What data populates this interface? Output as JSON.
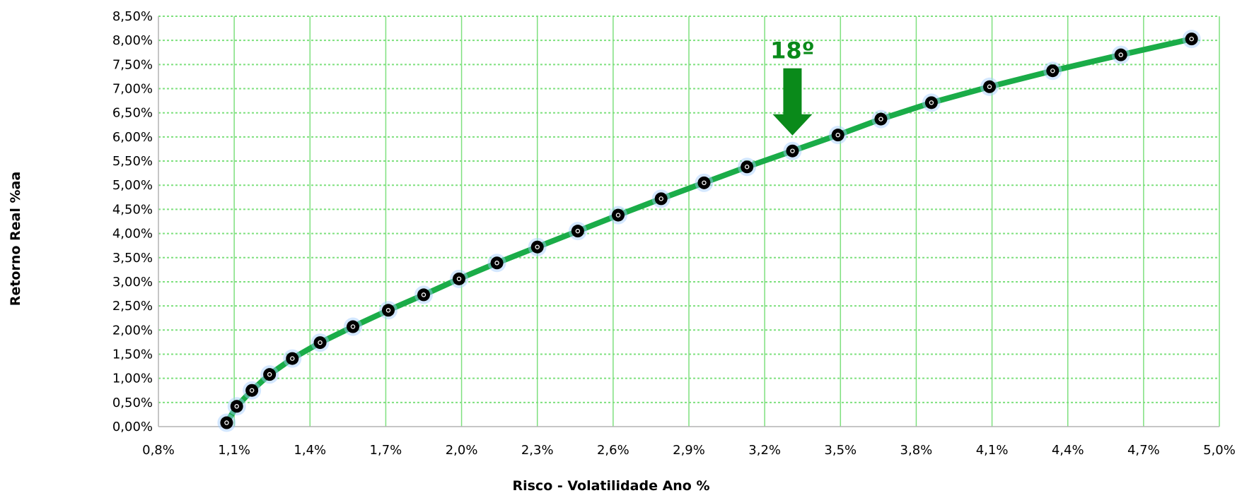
{
  "chart_data": {
    "type": "line",
    "xlabel": "Risco - Volatilidade Ano %",
    "ylabel": "Retorno Real %aa",
    "xlim": [
      0.8,
      5.0
    ],
    "ylim": [
      0,
      8.5
    ],
    "x_ticks": [
      "0,8%",
      "1,1%",
      "1,4%",
      "1,7%",
      "2,0%",
      "2,3%",
      "2,6%",
      "2,9%",
      "3,2%",
      "3,5%",
      "3,8%",
      "4,1%",
      "4,4%",
      "4,7%",
      "5,0%"
    ],
    "y_ticks": [
      "0,00%",
      "0,50%",
      "1,00%",
      "1,50%",
      "2,00%",
      "2,50%",
      "3,00%",
      "3,50%",
      "4,00%",
      "4,50%",
      "5,00%",
      "5,50%",
      "6,00%",
      "6,50%",
      "7,00%",
      "7,50%",
      "8,00%",
      "8,50%"
    ],
    "grid": true,
    "series": [
      {
        "x": [
          1.07,
          1.11,
          1.17,
          1.24,
          1.33,
          1.44,
          1.57,
          1.71,
          1.85,
          1.99,
          2.14,
          2.3,
          2.46,
          2.62,
          2.79,
          2.96,
          3.13,
          3.31,
          3.49,
          3.66,
          3.86,
          4.09,
          4.34,
          4.61,
          4.89
        ],
        "y": [
          0.08,
          0.42,
          0.75,
          1.08,
          1.41,
          1.74,
          2.07,
          2.41,
          2.73,
          3.06,
          3.39,
          3.72,
          4.05,
          4.38,
          4.72,
          5.05,
          5.38,
          5.71,
          6.04,
          6.37,
          6.71,
          7.04,
          7.37,
          7.7,
          8.03
        ]
      }
    ],
    "colors": {
      "line": "#1aac48",
      "marker": "#000000",
      "grid": "#7ee07e",
      "annotation": "#0a8a1a"
    },
    "annotations": [
      {
        "text": "18º",
        "x": 3.31,
        "y": 5.71,
        "icon": "down-arrow-icon"
      }
    ]
  }
}
